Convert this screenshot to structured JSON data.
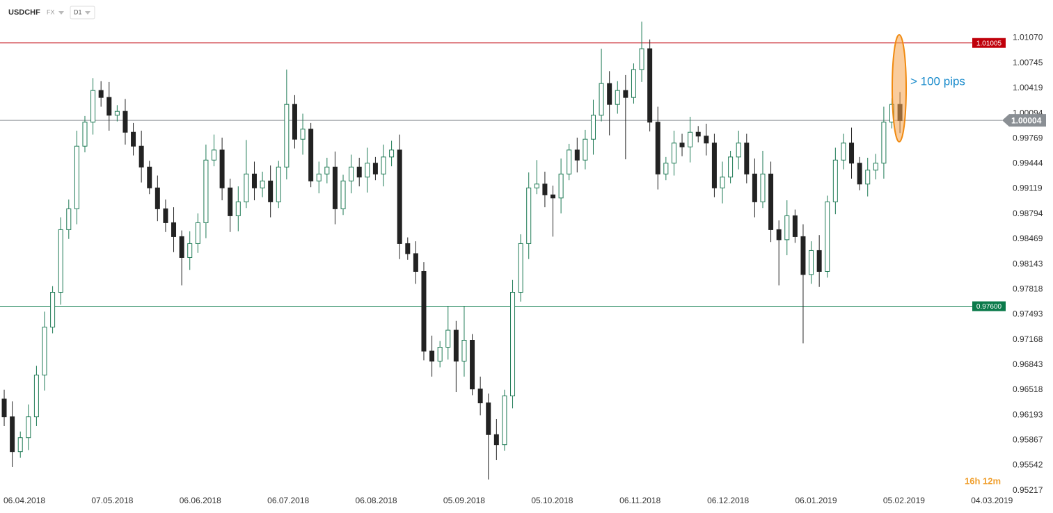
{
  "chart_data": {
    "type": "candlestick",
    "title": "USDCHF",
    "market": "FX",
    "timeframe": "D1",
    "open": [
      0.964,
      0.9617,
      0.9572,
      0.959,
      0.9617,
      0.9671,
      0.9733,
      0.9778,
      0.9859,
      0.9886,
      0.9967,
      0.9998,
      1.0039,
      1.003,
      1.0007,
      1.0012,
      0.9985,
      0.9967,
      0.994,
      0.9913,
      0.9886,
      0.9868,
      0.985,
      0.9823,
      0.9841,
      0.9868,
      0.9949,
      0.9962,
      0.9913,
      0.9877,
      0.9895,
      0.9931,
      0.9913,
      0.9922,
      0.9895,
      0.994,
      1.0021,
      0.9976,
      0.9989,
      0.9922,
      0.9931,
      0.994,
      0.9886,
      0.9922,
      0.994,
      0.9927,
      0.9945,
      0.9931,
      0.9953,
      0.9962,
      0.9841,
      0.9828,
      0.9805,
      0.9702,
      0.9689,
      0.9707,
      0.9729,
      0.9689,
      0.9716,
      0.9653,
      0.9635,
      0.9594,
      0.9581,
      0.9644,
      0.9778,
      0.9841,
      0.9913,
      0.9918,
      0.9904,
      0.99,
      0.9931,
      0.9962,
      0.9949,
      0.9976,
      1.0007,
      1.0048,
      1.0021,
      1.0039,
      1.003,
      1.0066,
      1.0093,
      0.9998,
      0.9931,
      0.9945,
      0.9971,
      0.9966,
      0.9985,
      0.998,
      0.9971,
      0.9913,
      0.9927,
      0.9953,
      0.9971,
      0.9931,
      0.9895,
      0.9931,
      0.9859,
      0.9846,
      0.9877,
      0.985,
      0.9801,
      0.9832,
      0.9805,
      0.9895,
      0.9949,
      0.9971,
      0.9945,
      0.9918,
      0.9936,
      0.9945,
      0.9998,
      1.0021
    ],
    "high": [
      0.9652,
      0.9637,
      0.9598,
      0.9633,
      0.9683,
      0.9753,
      0.9786,
      0.9875,
      0.9898,
      0.9987,
      1.0006,
      1.0055,
      1.0051,
      1.005,
      1.002,
      1.0028,
      0.9997,
      0.9987,
      0.9948,
      0.9929,
      0.9898,
      0.9888,
      0.9858,
      0.9857,
      0.988,
      0.9969,
      0.9982,
      0.9978,
      0.9925,
      0.9915,
      0.9975,
      0.9947,
      0.9934,
      0.9942,
      0.9948,
      1.0066,
      1.0033,
      1.0009,
      0.9997,
      0.9947,
      0.9952,
      0.996,
      0.993,
      0.9956,
      0.9952,
      0.9965,
      0.9953,
      0.9969,
      0.9974,
      0.9982,
      0.9849,
      0.9844,
      0.9817,
      0.9722,
      0.9715,
      0.976,
      0.9741,
      0.976,
      0.9724,
      0.9669,
      0.9647,
      0.9614,
      0.9652,
      0.9794,
      0.9853,
      0.9933,
      0.9949,
      0.9934,
      0.9916,
      0.9951,
      0.997,
      0.9978,
      0.9988,
      1.0027,
      1.0093,
      1.0064,
      1.0051,
      1.0059,
      1.0074,
      1.0128,
      1.0105,
      1.0018,
      0.9953,
      0.9987,
      0.9983,
      1.0005,
      0.9993,
      0.9996,
      0.9983,
      0.9947,
      0.9961,
      0.9987,
      0.9983,
      0.9951,
      0.9961,
      0.9947,
      0.9871,
      0.9897,
      0.9885,
      0.9866,
      0.9844,
      0.9852,
      0.9903,
      0.9965,
      0.9983,
      0.9991,
      0.9953,
      0.9952,
      0.9957,
      1.0018,
      1.0029,
      1.0037
    ],
    "low": [
      0.9605,
      0.9552,
      0.9564,
      0.9574,
      0.9605,
      0.9651,
      0.9725,
      0.9762,
      0.9847,
      0.9866,
      0.9959,
      0.9982,
      1.0018,
      0.9987,
      0.9999,
      0.9969,
      0.9955,
      0.992,
      0.9905,
      0.987,
      0.9856,
      0.983,
      0.9787,
      0.9807,
      0.9829,
      0.9848,
      0.9941,
      0.9897,
      0.9856,
      0.9857,
      0.9887,
      0.9897,
      0.9901,
      0.9875,
      0.9887,
      0.9924,
      0.9964,
      0.9956,
      0.9914,
      0.9906,
      0.9919,
      0.9866,
      0.9878,
      0.9906,
      0.9915,
      0.9907,
      0.9923,
      0.9915,
      0.9941,
      0.9821,
      0.982,
      0.9789,
      0.969,
      0.9669,
      0.9681,
      0.9691,
      0.9649,
      0.9669,
      0.9645,
      0.9619,
      0.9536,
      0.9561,
      0.9573,
      0.9628,
      0.9766,
      0.9821,
      0.9905,
      0.9888,
      0.985,
      0.988,
      0.9923,
      0.9933,
      0.9937,
      0.9956,
      0.9999,
      0.9981,
      1.0009,
      0.995,
      1.0022,
      1.005,
      0.9986,
      0.9911,
      0.9923,
      0.9929,
      0.9954,
      0.9946,
      0.9972,
      0.9955,
      0.9901,
      0.9893,
      0.9919,
      0.9937,
      0.9919,
      0.9875,
      0.9887,
      0.9843,
      0.9787,
      0.9826,
      0.9842,
      0.9712,
      0.9789,
      0.9785,
      0.9797,
      0.9879,
      0.9937,
      0.9925,
      0.991,
      0.9902,
      0.9924,
      0.9925,
      0.999,
      0.9984
    ],
    "close": [
      0.9617,
      0.9572,
      0.959,
      0.9617,
      0.9671,
      0.9733,
      0.9778,
      0.9859,
      0.9886,
      0.9967,
      0.9998,
      1.0039,
      1.003,
      1.0007,
      1.0012,
      0.9985,
      0.9967,
      0.994,
      0.9913,
      0.9886,
      0.9868,
      0.985,
      0.9823,
      0.9841,
      0.9868,
      0.9949,
      0.9962,
      0.9913,
      0.9877,
      0.9895,
      0.9931,
      0.9913,
      0.9922,
      0.9895,
      0.994,
      1.0021,
      0.9976,
      0.9989,
      0.9922,
      0.9931,
      0.994,
      0.9886,
      0.9922,
      0.994,
      0.9927,
      0.9945,
      0.9931,
      0.9953,
      0.9962,
      0.9841,
      0.9828,
      0.9805,
      0.9702,
      0.9689,
      0.9707,
      0.9729,
      0.9689,
      0.9716,
      0.9653,
      0.9635,
      0.9594,
      0.9581,
      0.9644,
      0.9778,
      0.9841,
      0.9913,
      0.9918,
      0.9904,
      0.99,
      0.9931,
      0.9962,
      0.9949,
      0.9976,
      1.0007,
      1.0048,
      1.0021,
      1.0039,
      1.003,
      1.0066,
      1.0093,
      0.9998,
      0.9931,
      0.9945,
      0.9971,
      0.9966,
      0.9985,
      0.998,
      0.9971,
      0.9913,
      0.9927,
      0.9953,
      0.9971,
      0.9931,
      0.9895,
      0.9931,
      0.9859,
      0.9846,
      0.9877,
      0.985,
      0.9801,
      0.9832,
      0.9805,
      0.9895,
      0.9949,
      0.9971,
      0.9945,
      0.9918,
      0.9936,
      0.9945,
      0.9998,
      1.0021,
      1.0
    ],
    "up_color": "#1e7a55",
    "down_color": "#222222",
    "xlim": [
      -0.52,
      124.1
    ],
    "xticks": [
      {
        "value": 2.5,
        "label": "06.04.2018"
      },
      {
        "value": 13.4,
        "label": "07.05.2018"
      },
      {
        "value": 24.3,
        "label": "06.06.2018"
      },
      {
        "value": 35.2,
        "label": "06.07.2018"
      },
      {
        "value": 46.1,
        "label": "06.08.2018"
      },
      {
        "value": 57.0,
        "label": "05.09.2018"
      },
      {
        "value": 67.9,
        "label": "05.10.2018"
      },
      {
        "value": 78.8,
        "label": "06.11.2018"
      },
      {
        "value": 89.7,
        "label": "06.12.2018"
      },
      {
        "value": 100.6,
        "label": "06.01.2019"
      },
      {
        "value": 111.5,
        "label": "05.02.2019"
      },
      {
        "value": 122.4,
        "label": "04.03.2019"
      }
    ],
    "ylim": [
      0.9516,
      1.0156
    ],
    "yticks": [
      {
        "value": 1.0107,
        "label": "1.01070"
      },
      1.00745,
      1.00419,
      1.00094,
      0.99769,
      0.99444,
      0.99119,
      0.98794,
      0.98469,
      0.98143,
      0.97818,
      0.97493,
      0.97168,
      0.96843,
      0.96518,
      0.96193,
      0.95867,
      0.95542,
      0.95217
    ],
    "levels": [
      {
        "value": 1.01005,
        "label": "1.01005",
        "color": "#c0000a"
      },
      {
        "value": 0.976,
        "label": "0.97600",
        "color": "#0a7a4a"
      }
    ],
    "current_price": 1.00004,
    "annotation": "> 100 pips",
    "countdown": "16h 12m"
  }
}
